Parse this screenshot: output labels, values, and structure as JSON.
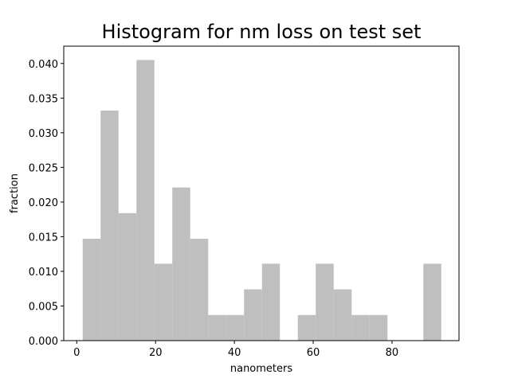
{
  "chart_data": {
    "type": "bar",
    "title": "Histogram for nm loss on test set",
    "xlabel": "nanometers",
    "ylabel": "fraction",
    "xlim": [
      -3.3,
      97.0
    ],
    "ylim": [
      0,
      0.0425
    ],
    "bar_color": "#bfbfbf",
    "grid": false,
    "x_ticks": [
      0,
      20,
      40,
      60,
      80
    ],
    "y_ticks": [
      "0.000",
      "0.005",
      "0.010",
      "0.015",
      "0.020",
      "0.025",
      "0.030",
      "0.035",
      "0.040"
    ],
    "bins": [
      {
        "x0": 1.5,
        "x1": 6.05,
        "value": 0.0147
      },
      {
        "x0": 6.05,
        "x1": 10.6,
        "value": 0.0332
      },
      {
        "x0": 10.6,
        "x1": 15.15,
        "value": 0.0184
      },
      {
        "x0": 15.15,
        "x1": 19.7,
        "value": 0.0405
      },
      {
        "x0": 19.7,
        "x1": 24.25,
        "value": 0.0111
      },
      {
        "x0": 24.25,
        "x1": 28.8,
        "value": 0.0221
      },
      {
        "x0": 28.8,
        "x1": 33.35,
        "value": 0.0147
      },
      {
        "x0": 33.35,
        "x1": 37.9,
        "value": 0.0037
      },
      {
        "x0": 37.9,
        "x1": 42.45,
        "value": 0.0037
      },
      {
        "x0": 42.45,
        "x1": 47.0,
        "value": 0.0074
      },
      {
        "x0": 47.0,
        "x1": 51.55,
        "value": 0.0111
      },
      {
        "x0": 51.55,
        "x1": 56.1,
        "value": 0.0
      },
      {
        "x0": 56.1,
        "x1": 60.65,
        "value": 0.0037
      },
      {
        "x0": 60.65,
        "x1": 65.2,
        "value": 0.0111
      },
      {
        "x0": 65.2,
        "x1": 69.75,
        "value": 0.0074
      },
      {
        "x0": 69.75,
        "x1": 74.3,
        "value": 0.0037
      },
      {
        "x0": 74.3,
        "x1": 78.85,
        "value": 0.0037
      },
      {
        "x0": 78.85,
        "x1": 83.4,
        "value": 0.0
      },
      {
        "x0": 83.4,
        "x1": 87.95,
        "value": 0.0
      },
      {
        "x0": 87.95,
        "x1": 92.5,
        "value": 0.0111
      }
    ]
  }
}
